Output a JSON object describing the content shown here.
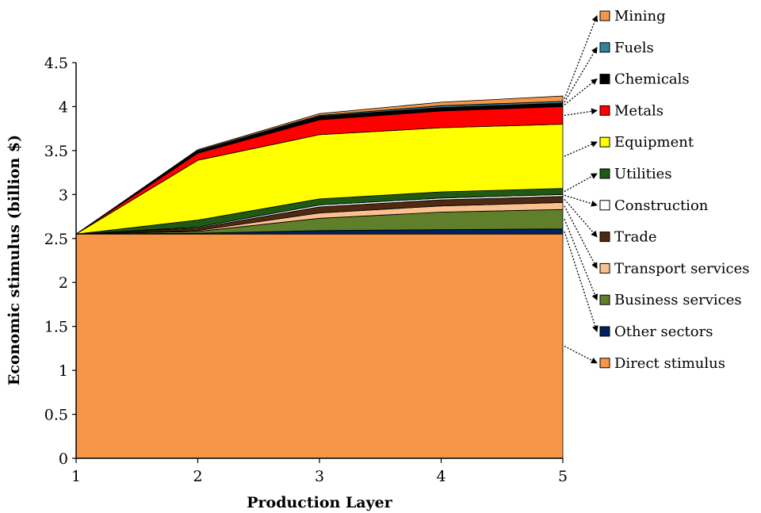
{
  "chart_data": {
    "type": "area",
    "stacked": true,
    "xlabel": "Production Layer",
    "ylabel": "Economic stimulus (billion $)",
    "x": [
      1,
      2,
      3,
      4,
      5
    ],
    "xlim": [
      1,
      5
    ],
    "ylim": [
      0,
      4.5
    ],
    "xticks": [
      "1",
      "2",
      "3",
      "4",
      "5"
    ],
    "yticks": [
      "0",
      "0.5",
      "1",
      "1.5",
      "2",
      "2.5",
      "3",
      "3.5",
      "4",
      "4.5"
    ],
    "grid": false,
    "legend_position": "right",
    "series": [
      {
        "name": "Direct stimulus",
        "color": "#F79646",
        "values": [
          2.55,
          2.55,
          2.55,
          2.55,
          2.55
        ]
      },
      {
        "name": "Other sectors",
        "color": "#002060",
        "values": [
          0,
          0.01,
          0.04,
          0.05,
          0.06
        ]
      },
      {
        "name": "Business services",
        "color": "#5F7F2A",
        "values": [
          0,
          0.02,
          0.14,
          0.2,
          0.22
        ]
      },
      {
        "name": "Transport services",
        "color": "#FAC090",
        "values": [
          0,
          0.01,
          0.06,
          0.07,
          0.08
        ]
      },
      {
        "name": "Trade",
        "color": "#4F2A12",
        "values": [
          0,
          0.03,
          0.07,
          0.07,
          0.07
        ]
      },
      {
        "name": "Construction",
        "color": "#FFFFFF",
        "values": [
          0,
          0.01,
          0.02,
          0.02,
          0.02
        ]
      },
      {
        "name": "Utilities",
        "color": "#1E5A14",
        "values": [
          0,
          0.08,
          0.07,
          0.07,
          0.07
        ]
      },
      {
        "name": "Equipment",
        "color": "#FFFF00",
        "values": [
          0,
          0.68,
          0.73,
          0.73,
          0.73
        ]
      },
      {
        "name": "Metals",
        "color": "#FF0000",
        "values": [
          0,
          0.08,
          0.17,
          0.19,
          0.2
        ]
      },
      {
        "name": "Chemicals",
        "color": "#000000",
        "values": [
          0,
          0.02,
          0.04,
          0.04,
          0.04
        ]
      },
      {
        "name": "Fuels",
        "color": "#31849B",
        "values": [
          0,
          0.01,
          0.01,
          0.02,
          0.02
        ]
      },
      {
        "name": "Mining",
        "color": "#F79646",
        "values": [
          0,
          0.01,
          0.02,
          0.04,
          0.06
        ]
      }
    ],
    "legend_order": [
      "Mining",
      "Fuels",
      "Chemicals",
      "Metals",
      "Equipment",
      "Utilities",
      "Construction",
      "Trade",
      "Transport services",
      "Business services",
      "Other sectors",
      "Direct stimulus"
    ]
  }
}
